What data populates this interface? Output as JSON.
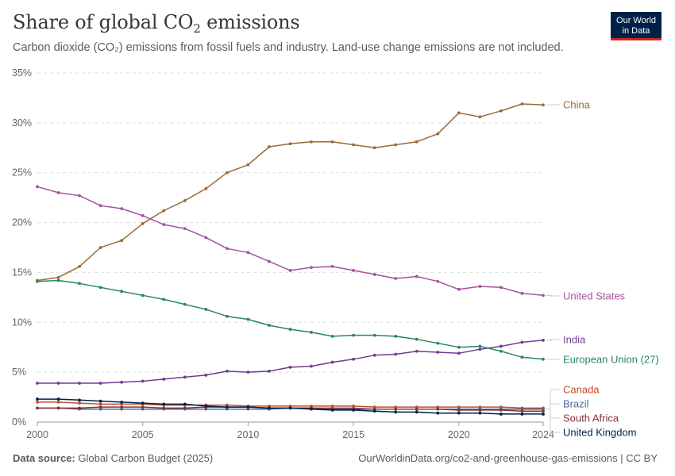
{
  "header": {
    "title_main": "Share of global CO",
    "title_sub": "2",
    "title_end": " emissions",
    "subtitle": "Carbon dioxide (CO₂) emissions from fossil fuels and industry. Land-use change emissions are not included."
  },
  "logo": {
    "line1": "Our World",
    "line2": "in Data"
  },
  "footer": {
    "source_label": "Data source:",
    "source_value": "Global Carbon Budget (2025)",
    "url": "OurWorldinData.org/co2-and-greenhouse-gas-emissions | CC BY"
  },
  "chart_data": {
    "type": "line",
    "title": "Share of global CO₂ emissions",
    "x": [
      2000,
      2001,
      2002,
      2003,
      2004,
      2005,
      2006,
      2007,
      2008,
      2009,
      2010,
      2011,
      2012,
      2013,
      2014,
      2015,
      2016,
      2017,
      2018,
      2019,
      2020,
      2021,
      2022,
      2023,
      2024
    ],
    "xticks": [
      "2000",
      "2005",
      "2010",
      "2015",
      "2020",
      "2024"
    ],
    "xtick_values": [
      2000,
      2005,
      2010,
      2015,
      2020,
      2024
    ],
    "yticks": [
      "0%",
      "5%",
      "10%",
      "15%",
      "20%",
      "25%",
      "30%",
      "35%"
    ],
    "ylim": [
      0,
      35
    ],
    "grid": "horizontal-dashed",
    "legend": "right-end-labels",
    "series": [
      {
        "name": "China",
        "color": "#9a6a34",
        "values": [
          14.2,
          14.5,
          15.6,
          17.5,
          18.2,
          19.9,
          21.2,
          22.2,
          23.4,
          25.0,
          25.8,
          27.6,
          27.9,
          28.1,
          28.1,
          27.8,
          27.5,
          27.8,
          28.1,
          28.9,
          31.0,
          30.6,
          31.2,
          31.9,
          31.8
        ]
      },
      {
        "name": "United States",
        "color": "#a4539e",
        "values": [
          23.6,
          23.0,
          22.7,
          21.7,
          21.4,
          20.7,
          19.8,
          19.4,
          18.5,
          17.4,
          17.0,
          16.1,
          15.2,
          15.5,
          15.6,
          15.2,
          14.8,
          14.4,
          14.6,
          14.1,
          13.3,
          13.6,
          13.5,
          12.9,
          12.7
        ]
      },
      {
        "name": "India",
        "color": "#6d3e91",
        "values": [
          3.9,
          3.9,
          3.9,
          3.9,
          4.0,
          4.1,
          4.3,
          4.5,
          4.7,
          5.1,
          5.0,
          5.1,
          5.5,
          5.6,
          6.0,
          6.3,
          6.7,
          6.8,
          7.1,
          7.0,
          6.9,
          7.3,
          7.6,
          8.0,
          8.2
        ]
      },
      {
        "name": "European Union (27)",
        "color": "#2c8465",
        "values": [
          14.1,
          14.2,
          13.9,
          13.5,
          13.1,
          12.7,
          12.3,
          11.8,
          11.3,
          10.6,
          10.3,
          9.7,
          9.3,
          9.0,
          8.6,
          8.7,
          8.7,
          8.6,
          8.3,
          7.9,
          7.5,
          7.6,
          7.1,
          6.5,
          6.3
        ]
      },
      {
        "name": "Canada",
        "color": "#c15028",
        "values": [
          2.0,
          2.0,
          1.9,
          1.8,
          1.8,
          1.8,
          1.7,
          1.7,
          1.7,
          1.7,
          1.6,
          1.6,
          1.6,
          1.6,
          1.6,
          1.6,
          1.5,
          1.5,
          1.5,
          1.5,
          1.5,
          1.5,
          1.5,
          1.4,
          1.4
        ]
      },
      {
        "name": "Brazil",
        "color": "#4c6a9c",
        "values": [
          1.4,
          1.4,
          1.3,
          1.3,
          1.3,
          1.3,
          1.3,
          1.3,
          1.3,
          1.3,
          1.3,
          1.3,
          1.4,
          1.4,
          1.4,
          1.4,
          1.3,
          1.3,
          1.3,
          1.3,
          1.3,
          1.3,
          1.3,
          1.3,
          1.3
        ]
      },
      {
        "name": "South Africa",
        "color": "#883039",
        "values": [
          1.4,
          1.4,
          1.4,
          1.5,
          1.5,
          1.5,
          1.4,
          1.4,
          1.5,
          1.5,
          1.5,
          1.4,
          1.4,
          1.4,
          1.3,
          1.3,
          1.3,
          1.3,
          1.3,
          1.3,
          1.2,
          1.2,
          1.2,
          1.1,
          1.1
        ]
      },
      {
        "name": "United Kingdom",
        "color": "#002147",
        "values": [
          2.3,
          2.3,
          2.2,
          2.1,
          2.0,
          1.9,
          1.8,
          1.8,
          1.6,
          1.5,
          1.5,
          1.4,
          1.4,
          1.3,
          1.2,
          1.2,
          1.1,
          1.0,
          1.0,
          0.9,
          0.9,
          0.9,
          0.8,
          0.8,
          0.8
        ]
      }
    ]
  }
}
